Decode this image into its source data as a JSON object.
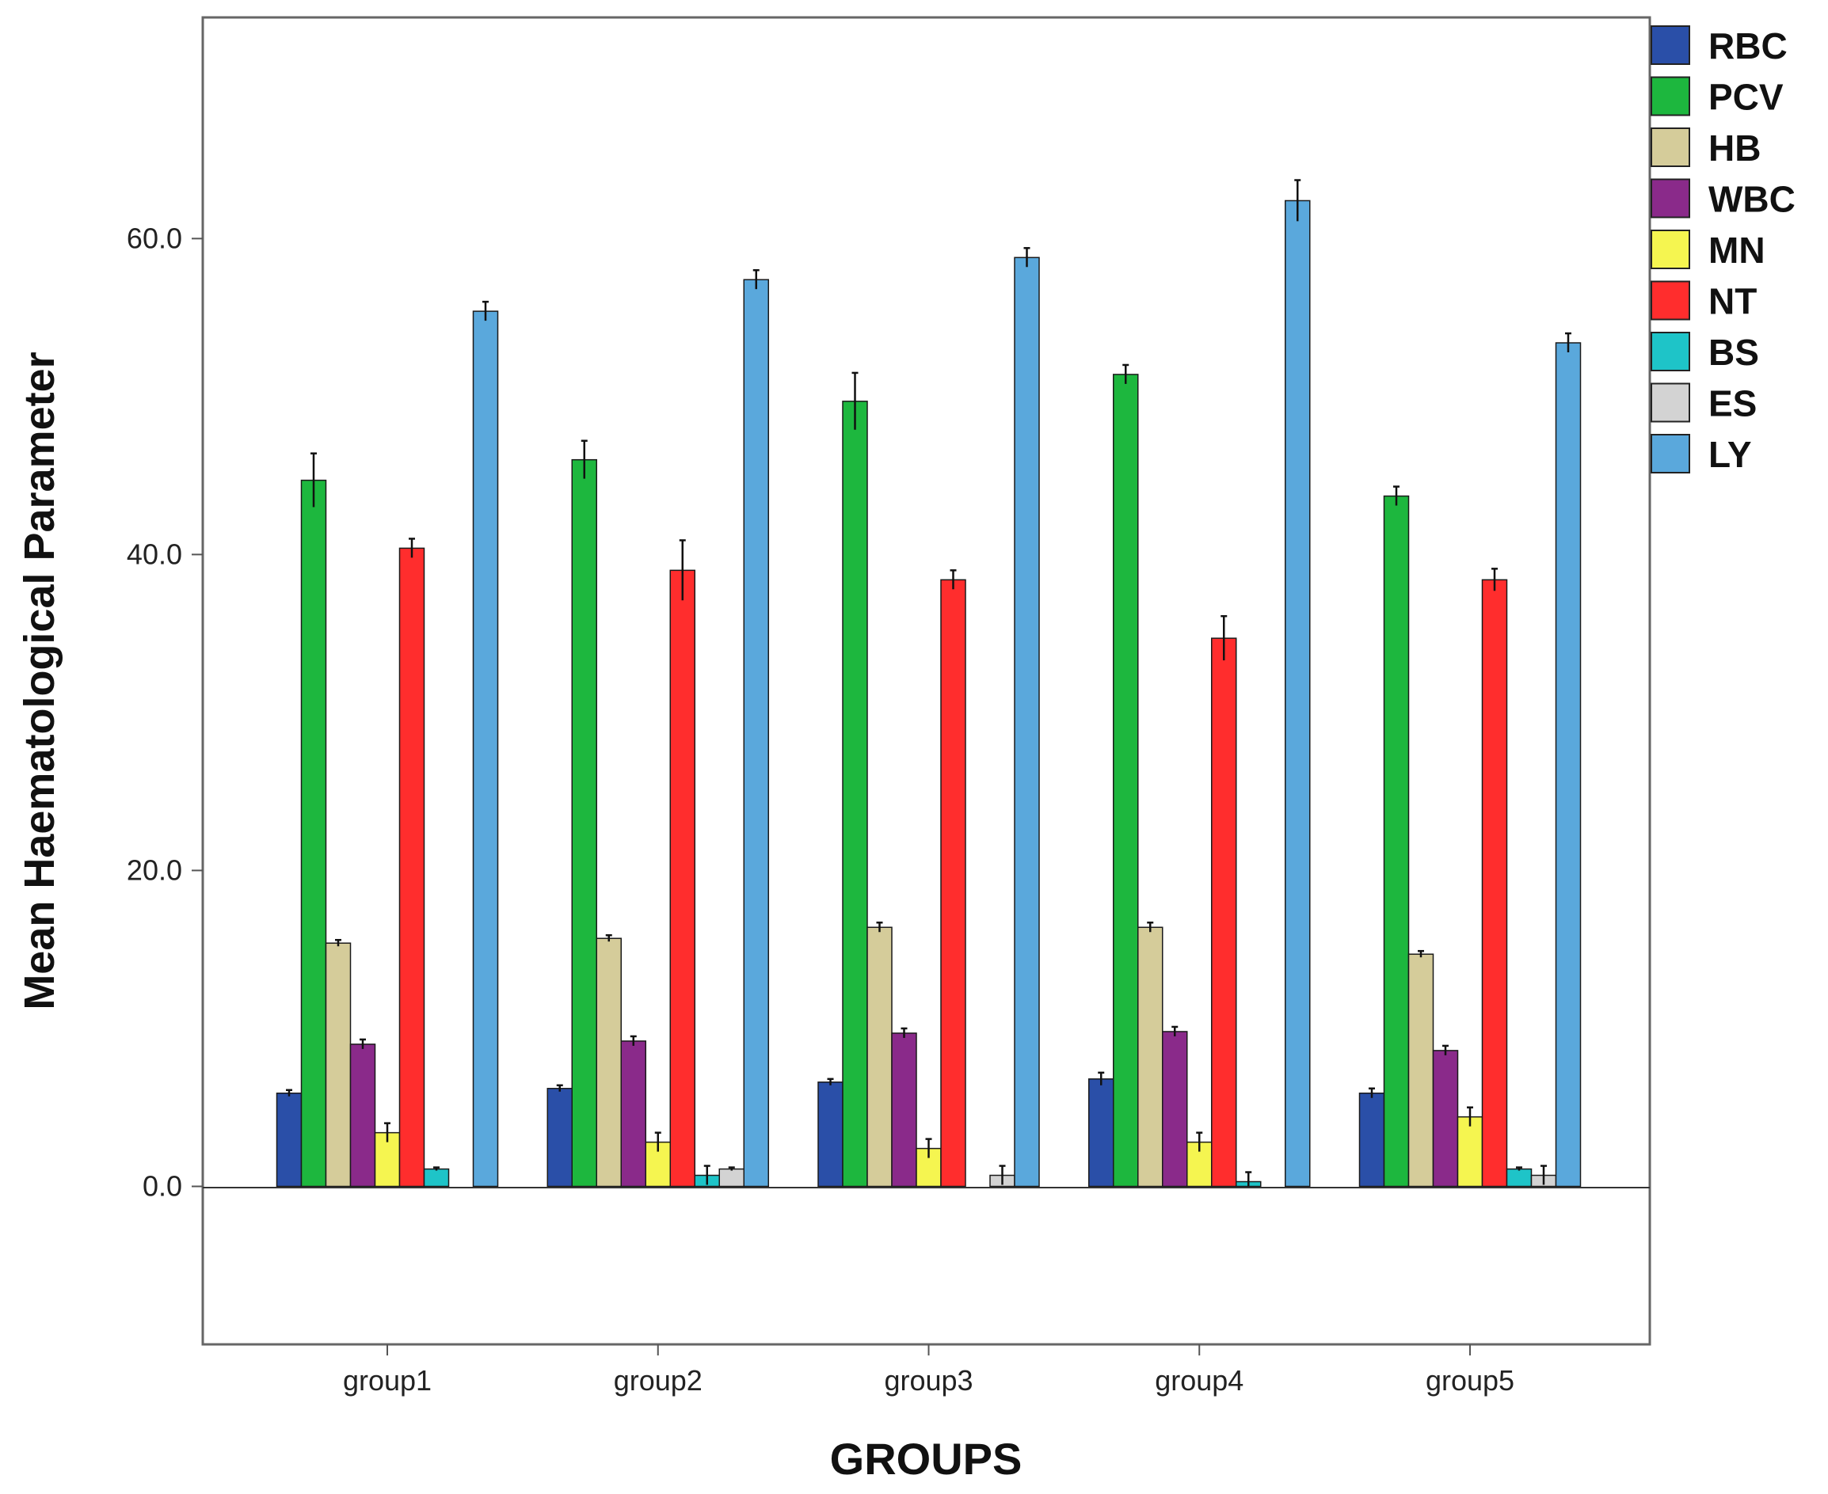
{
  "chart_data": {
    "type": "bar",
    "title": "",
    "xlabel": "GROUPS",
    "ylabel": "Mean Haematological Parameter",
    "categories": [
      "group1",
      "group2",
      "group3",
      "group4",
      "group5"
    ],
    "ylim": [
      -10,
      74
    ],
    "yticks": [
      0,
      20,
      40,
      60
    ],
    "ytick_labels": [
      "0.0",
      "20.0",
      "40.0",
      "60.0"
    ],
    "grid": false,
    "legend_position": "top-right outside",
    "error_bars": true,
    "series": [
      {
        "name": "RBC",
        "color": "#2a4fa8",
        "values": [
          5.9,
          6.2,
          6.6,
          6.8,
          5.9
        ],
        "errors": [
          0.2,
          0.2,
          0.2,
          0.4,
          0.3
        ]
      },
      {
        "name": "PCV",
        "color": "#1db73e",
        "values": [
          44.7,
          46.0,
          49.7,
          51.4,
          43.7
        ],
        "errors": [
          1.7,
          1.2,
          1.8,
          0.6,
          0.6
        ]
      },
      {
        "name": "HB",
        "color": "#d5cc9a",
        "values": [
          15.4,
          15.7,
          16.4,
          16.4,
          14.7
        ],
        "errors": [
          0.2,
          0.2,
          0.3,
          0.3,
          0.2
        ]
      },
      {
        "name": "WBC",
        "color": "#8a2a8a",
        "values": [
          9.0,
          9.2,
          9.7,
          9.8,
          8.6
        ],
        "errors": [
          0.3,
          0.3,
          0.3,
          0.3,
          0.3
        ]
      },
      {
        "name": "MN",
        "color": "#f5f550",
        "values": [
          3.4,
          2.8,
          2.4,
          2.8,
          4.4
        ],
        "errors": [
          0.6,
          0.6,
          0.6,
          0.6,
          0.6
        ]
      },
      {
        "name": "NT",
        "color": "#ff2d2d",
        "values": [
          40.4,
          39.0,
          38.4,
          34.7,
          38.4
        ],
        "errors": [
          0.6,
          1.9,
          0.6,
          1.4,
          0.7
        ]
      },
      {
        "name": "BS",
        "color": "#1ec4c8",
        "values": [
          1.1,
          0.7,
          0.0,
          0.3,
          1.1
        ],
        "errors": [
          0.1,
          0.6,
          0.0,
          0.6,
          0.1
        ]
      },
      {
        "name": "ES",
        "color": "#d3d3d3",
        "values": [
          0.0,
          1.1,
          0.7,
          0.0,
          0.7
        ],
        "errors": [
          0.0,
          0.1,
          0.6,
          0.0,
          0.6
        ]
      },
      {
        "name": "LY",
        "color": "#5aa8dc",
        "values": [
          55.4,
          57.4,
          58.8,
          62.4,
          53.4
        ],
        "errors": [
          0.6,
          0.6,
          0.6,
          1.3,
          0.6
        ]
      }
    ]
  }
}
